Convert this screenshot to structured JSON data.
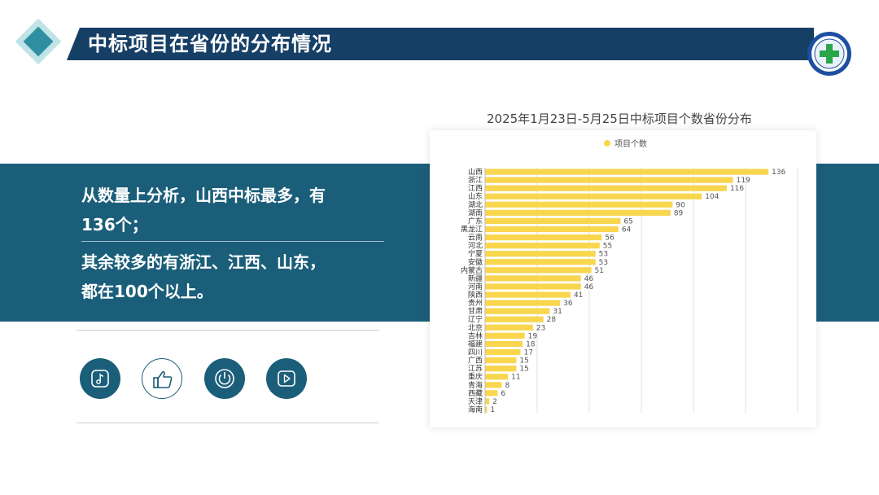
{
  "header": {
    "title": "中标项目在省份的分布情况"
  },
  "summary": {
    "stat_line1": "从数量上分析，山西中标最多，有",
    "stat_line2": "136个；",
    "detail_line1": "其余较多的有浙江、江西、山东，",
    "detail_line2": "都在100个以上。"
  },
  "icons": [
    "music-icon",
    "thumbs-up-icon",
    "power-icon",
    "play-icon"
  ],
  "colors": {
    "title_bar": "#163f66",
    "band": "#1b5e79",
    "bar": "#f8d64e",
    "accent": "#2f8fa0"
  },
  "chart_data": {
    "type": "bar",
    "orientation": "horizontal",
    "title": "2025年1月23日-5月25日中标项目个数省份分布",
    "legend": {
      "label": "项目个数",
      "position": "top"
    },
    "categories": [
      "山西",
      "浙江",
      "江西",
      "山东",
      "湖北",
      "湖南",
      "广东",
      "黑龙江",
      "云南",
      "河北",
      "宁夏",
      "安徽",
      "内蒙古",
      "新疆",
      "河南",
      "陕西",
      "贵州",
      "甘肃",
      "辽宁",
      "北京",
      "吉林",
      "福建",
      "四川",
      "广西",
      "江苏",
      "重庆",
      "青海",
      "西藏",
      "天津",
      "海南"
    ],
    "series": [
      {
        "name": "项目个数",
        "values": [
          136,
          119,
          116,
          104,
          90,
          89,
          65,
          64,
          56,
          55,
          53,
          53,
          51,
          46,
          46,
          41,
          36,
          31,
          28,
          23,
          19,
          18,
          17,
          15,
          15,
          11,
          8,
          6,
          2,
          1
        ]
      }
    ],
    "xlim": [
      0,
      150
    ],
    "grid": true
  }
}
